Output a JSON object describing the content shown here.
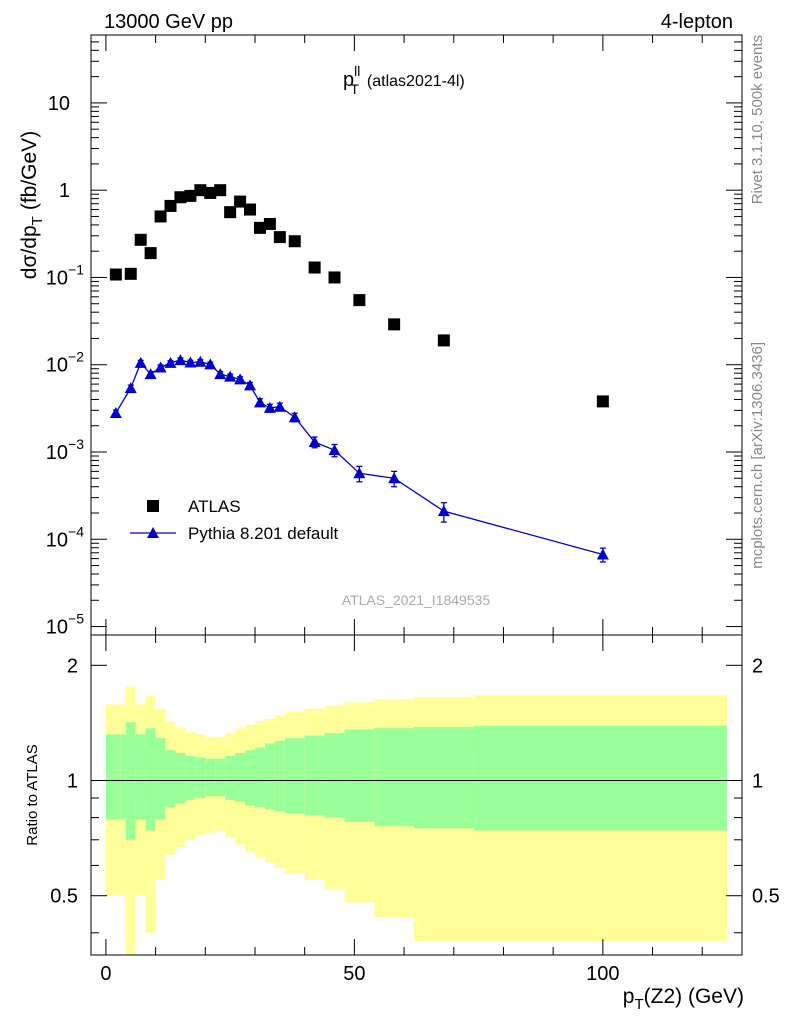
{
  "header": {
    "left": "13000 GeV pp",
    "right": "4-lepton"
  },
  "side_text": {
    "rivet": "Rivet 3.1.10,  500k events",
    "mcplots": "mcplots.cern.ch [arXiv:1306.3436]"
  },
  "panel_title": {
    "main": "p",
    "sup": "ll",
    "sub": "T",
    "suffix": "(atlas2021-4l)"
  },
  "watermark": "ATLAS_2021_I1849535",
  "axes": {
    "ylabel_main": "dσ/dp",
    "ylabel_main_sub": "T",
    "ylabel_main_unit": "(fb/GeV)",
    "ylabel_ratio": "Ratio to ATLAS",
    "xlabel": "p",
    "xlabel_sub": "T",
    "xlabel_rest": "(Z2) (GeV)",
    "x_ticks": [
      "0",
      "50",
      "100"
    ],
    "y_ticks_main": [
      {
        "base": "10",
        "exp": "−5"
      },
      {
        "base": "10",
        "exp": "−4"
      },
      {
        "base": "10",
        "exp": "−3"
      },
      {
        "base": "10",
        "exp": "−2"
      },
      {
        "base": "10",
        "exp": "−1"
      },
      {
        "base": "1",
        "exp": ""
      },
      {
        "base": "10",
        "exp": ""
      }
    ],
    "y_ticks_ratio": [
      "0.5",
      "1",
      "2"
    ]
  },
  "legend": {
    "atlas": "ATLAS",
    "pythia": "Pythia 8.201 default"
  },
  "colors": {
    "atlas": "#000000",
    "pythia": "#0000cc",
    "band_inner": "#99ff99",
    "band_outer": "#ffff99"
  },
  "chart_data": {
    "type": "scatter",
    "x_range": [
      -3,
      128
    ],
    "y_range_main": [
      8e-06,
      60
    ],
    "y_scale_main": "log",
    "y_range_ratio": [
      0.35,
      2.4
    ],
    "y_scale_ratio": "log",
    "series": [
      {
        "name": "ATLAS",
        "marker": "square",
        "x": [
          2,
          5,
          7,
          9,
          11,
          13,
          15,
          17,
          19,
          21,
          23,
          25,
          27,
          29,
          31,
          33,
          35,
          38,
          42,
          46,
          51,
          58,
          68,
          100
        ],
        "y": [
          0.108,
          0.11,
          0.27,
          0.19,
          0.5,
          0.66,
          0.83,
          0.86,
          1.0,
          0.93,
          1.0,
          0.56,
          0.74,
          0.6,
          0.37,
          0.41,
          0.29,
          0.26,
          0.13,
          0.1,
          0.055,
          0.029,
          0.019,
          0.0038
        ]
      },
      {
        "name": "Pythia 8.201 default",
        "marker": "triangle",
        "x": [
          2,
          5,
          7,
          9,
          11,
          13,
          15,
          17,
          19,
          21,
          23,
          25,
          27,
          29,
          31,
          33,
          35,
          38,
          42,
          46,
          51,
          58,
          68,
          100
        ],
        "y": [
          0.0028,
          0.0054,
          0.0105,
          0.0078,
          0.0093,
          0.0105,
          0.0113,
          0.0106,
          0.0108,
          0.0101,
          0.0078,
          0.0073,
          0.0068,
          0.0058,
          0.0037,
          0.0032,
          0.0033,
          0.0025,
          0.0013,
          0.00105,
          0.00057,
          0.0005,
          0.00021,
          6.7e-05
        ],
        "yerr_frac": [
          0.08,
          0.08,
          0.07,
          0.07,
          0.07,
          0.06,
          0.06,
          0.06,
          0.06,
          0.06,
          0.07,
          0.07,
          0.07,
          0.08,
          0.1,
          0.1,
          0.1,
          0.11,
          0.14,
          0.16,
          0.2,
          0.2,
          0.25,
          0.18
        ]
      }
    ],
    "ratio_bands": {
      "edges": [
        0,
        3,
        4,
        6,
        8,
        10,
        12,
        14,
        16,
        18,
        20,
        22,
        24,
        26,
        28,
        30,
        32,
        34,
        36,
        40,
        44,
        48,
        54,
        62,
        74,
        125
      ],
      "inner_lo": [
        0.79,
        0.79,
        0.7,
        0.79,
        0.74,
        0.79,
        0.85,
        0.87,
        0.89,
        0.9,
        0.91,
        0.91,
        0.89,
        0.88,
        0.86,
        0.85,
        0.84,
        0.83,
        0.82,
        0.81,
        0.8,
        0.78,
        0.76,
        0.75,
        0.74
      ],
      "inner_hi": [
        1.32,
        1.32,
        1.42,
        1.32,
        1.37,
        1.29,
        1.2,
        1.18,
        1.16,
        1.15,
        1.14,
        1.14,
        1.16,
        1.18,
        1.2,
        1.22,
        1.25,
        1.27,
        1.29,
        1.31,
        1.33,
        1.36,
        1.37,
        1.38,
        1.39
      ],
      "outer_lo": [
        0.5,
        0.5,
        0.33,
        0.5,
        0.4,
        0.55,
        0.64,
        0.67,
        0.7,
        0.72,
        0.73,
        0.74,
        0.71,
        0.68,
        0.65,
        0.63,
        0.61,
        0.59,
        0.57,
        0.55,
        0.52,
        0.48,
        0.44,
        0.38,
        0.38
      ],
      "outer_hi": [
        1.58,
        1.58,
        1.76,
        1.58,
        1.66,
        1.54,
        1.42,
        1.37,
        1.34,
        1.32,
        1.3,
        1.3,
        1.33,
        1.37,
        1.4,
        1.43,
        1.45,
        1.48,
        1.51,
        1.54,
        1.57,
        1.6,
        1.63,
        1.65,
        1.67
      ]
    }
  }
}
